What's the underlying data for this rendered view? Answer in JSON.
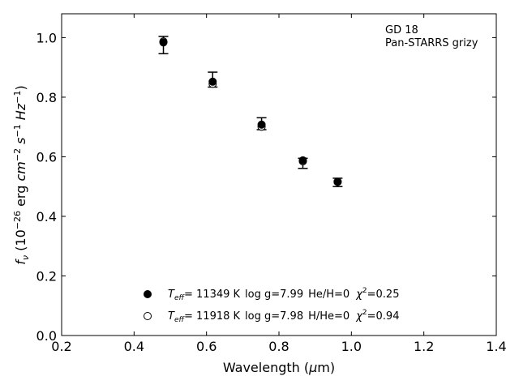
{
  "chart_data": {
    "type": "scatter",
    "annotation": {
      "line1": "GD 18",
      "line2": "Pan-STARRS grizy"
    },
    "xlabel": {
      "prefix": "Wavelength (",
      "unit": "μ",
      "suffix": "m)"
    },
    "ylabel": {
      "f": "f",
      "nu": "ν",
      "open": " (10",
      "exp1": "−26",
      "erg": " erg ",
      "cm": "cm",
      "exp2": "−2",
      "s": " s",
      "exp3": "−1",
      "hz": " Hz",
      "exp4": "−1",
      "close": ")"
    },
    "xlim": [
      0.2,
      1.4
    ],
    "ylim": [
      0.0,
      1.08
    ],
    "x_ticks": [
      "0.2",
      "0.4",
      "0.6",
      "0.8",
      "1.0",
      "1.2",
      "1.4"
    ],
    "y_ticks": [
      "0.0",
      "0.2",
      "0.4",
      "0.6",
      "0.8",
      "1.0"
    ],
    "observed": {
      "x": [
        0.481,
        0.617,
        0.752,
        0.866,
        0.962
      ],
      "y": [
        0.975,
        0.859,
        0.711,
        0.578,
        0.514
      ],
      "err": [
        0.029,
        0.025,
        0.02,
        0.017,
        0.014
      ]
    },
    "series": [
      {
        "marker": "filled",
        "legend": {
          "teff": "T",
          "teff_sub": "eff",
          "teff_val": "= 11349 K",
          "logg": "log g=7.99",
          "comp": "He/H=0",
          "chi": "χ",
          "chi_exp": "2",
          "chi_val": "=0.25"
        },
        "x": [
          0.481,
          0.617,
          0.752,
          0.866,
          0.962
        ],
        "y": [
          0.984,
          0.852,
          0.708,
          0.588,
          0.516
        ]
      },
      {
        "marker": "open",
        "legend": {
          "teff": "T",
          "teff_sub": "eff",
          "teff_val": "= 11918 K",
          "logg": "log g=7.98",
          "comp": "H/He=0",
          "chi": "χ",
          "chi_exp": "2",
          "chi_val": "=0.94"
        },
        "x": [
          0.481,
          0.617,
          0.752,
          0.866,
          0.962
        ],
        "y": [
          0.987,
          0.845,
          0.701,
          0.585,
          0.516
        ]
      }
    ],
    "legend_position": "lower-center",
    "grid": false
  }
}
